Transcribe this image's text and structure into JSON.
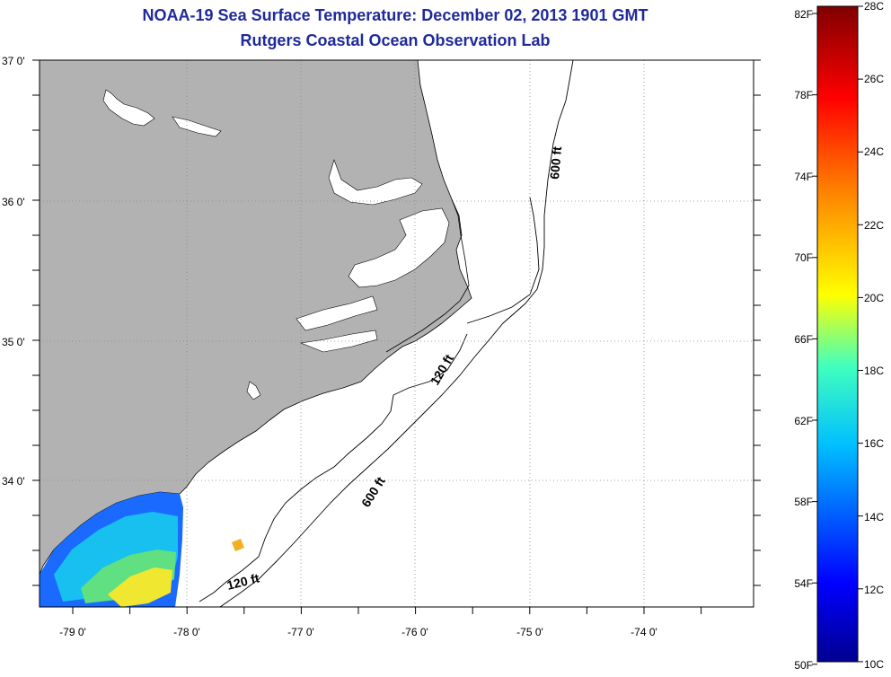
{
  "title": {
    "line1": "NOAA-19 Sea Surface Temperature:  December 02, 2013 1901 GMT",
    "line2": "Rutgers Coastal Ocean Observation Lab"
  },
  "map": {
    "lat_labels": [
      "37 0'",
      "36 0'",
      "35 0'",
      "34 0'"
    ],
    "lon_labels": [
      "-79 0'",
      "-78 0'",
      "-77 0'",
      "-76 0'",
      "-75 0'",
      "-74 0'"
    ],
    "contour_labels": {
      "shelf_north": "600 ft",
      "shelf_120_north": "120 ft",
      "shelf_south": "600 ft",
      "shelf_120_south": "120 ft"
    },
    "land_color": "#b2b2b2",
    "contour_color": "#000000",
    "grid_style": "dotted"
  },
  "colorbar": {
    "fahrenheit_labels": [
      "82F",
      "78F",
      "74F",
      "70F",
      "66F",
      "62F",
      "58F",
      "54F",
      "50F"
    ],
    "celsius_labels": [
      "28C",
      "26C",
      "24C",
      "22C",
      "20C",
      "18C",
      "16C",
      "14C",
      "12C",
      "10C"
    ],
    "min_c": 10,
    "max_c": 28,
    "colors": [
      "#00008f",
      "#0000ff",
      "#00bfff",
      "#40ffbf",
      "#ffff00",
      "#ff8000",
      "#ff0000",
      "#800000"
    ]
  }
}
